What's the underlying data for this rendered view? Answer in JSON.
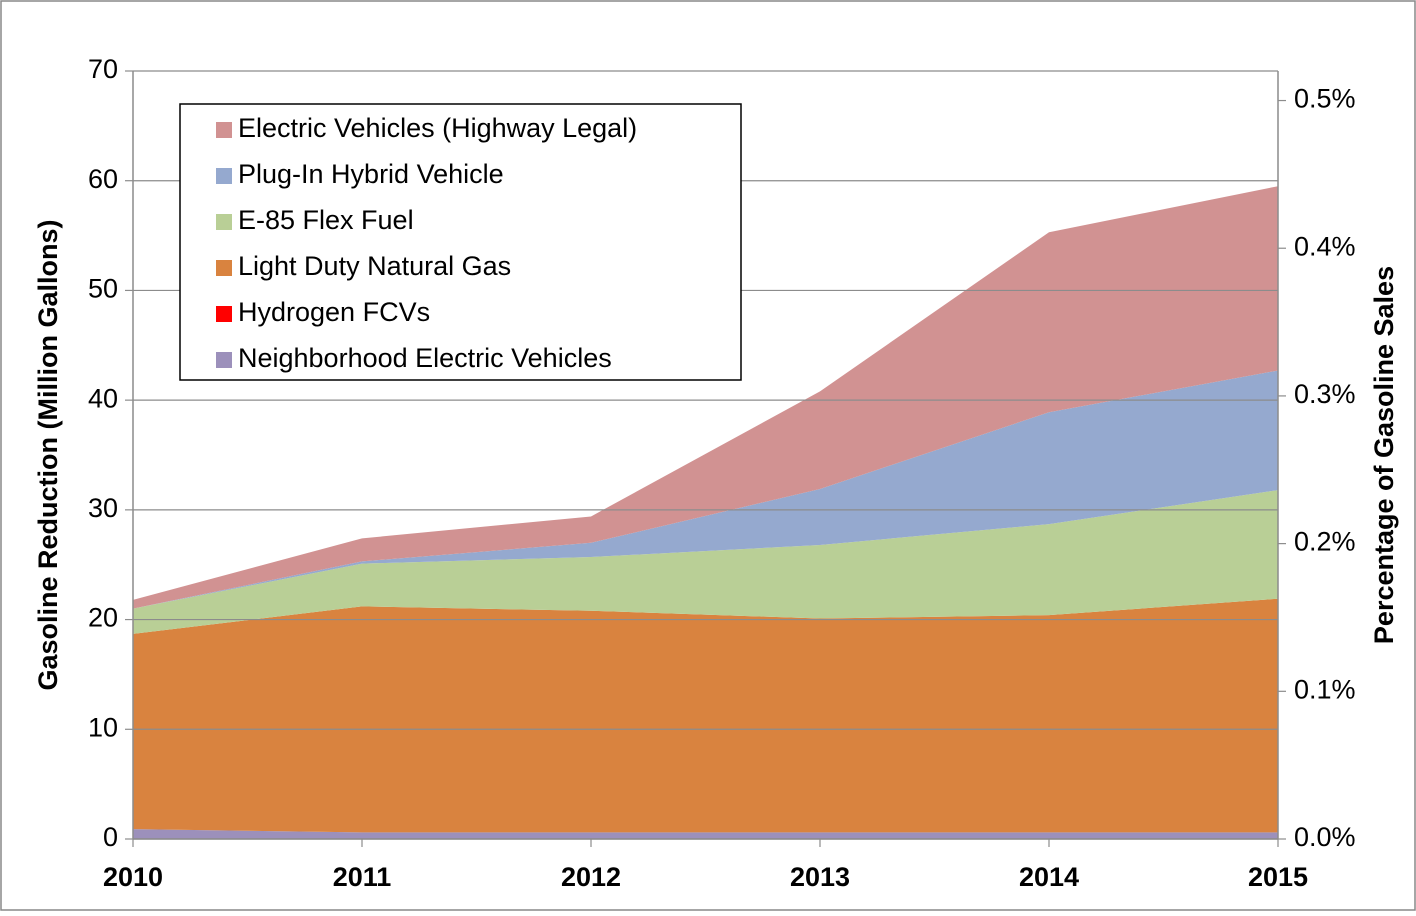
{
  "chart_data": {
    "type": "stacked_area",
    "y_label": "Gasoline Reduction (Million Gallons)",
    "y2_label": "Percentage of Gasoline Sales",
    "categories": [
      "2010",
      "2011",
      "2012",
      "2013",
      "2014",
      "2015"
    ],
    "series": [
      {
        "name": "Neighborhood Electric Vehicles",
        "color": "#9c90bb",
        "values": [
          0.9,
          0.6,
          0.6,
          0.6,
          0.6,
          0.6
        ]
      },
      {
        "name": "Hydrogen FCVs",
        "color": "#ff0000",
        "values": [
          0,
          0,
          0,
          0,
          0,
          0
        ]
      },
      {
        "name": "Light Duty Natural Gas",
        "color": "#d9833f",
        "values": [
          17.8,
          20.6,
          20.2,
          19.5,
          19.8,
          21.3
        ]
      },
      {
        "name": "E-85 Flex Fuel",
        "color": "#b9cf96",
        "values": [
          2.3,
          3.9,
          4.9,
          6.7,
          8.3,
          9.9
        ]
      },
      {
        "name": "Plug-In Hybrid Vehicle",
        "color": "#95a9cf",
        "values": [
          0,
          0.2,
          1.3,
          5.1,
          10.2,
          10.9
        ]
      },
      {
        "name": "Electric Vehicles (Highway Legal)",
        "color": "#d19292",
        "values": [
          0.8,
          2.1,
          2.4,
          8.9,
          16.4,
          16.8
        ]
      }
    ],
    "ylim": [
      0,
      70
    ],
    "yticks": [
      0,
      10,
      20,
      30,
      40,
      50,
      60,
      70
    ],
    "y2lim": [
      0,
      0.52
    ],
    "y2ticks": [
      {
        "value": 0,
        "label": "0.0%"
      },
      {
        "value": 0.1,
        "label": "0.1%"
      },
      {
        "value": 0.2,
        "label": "0.2%"
      },
      {
        "value": 0.3,
        "label": "0.3%"
      },
      {
        "value": 0.4,
        "label": "0.4%"
      },
      {
        "value": 0.5,
        "label": "0.5%"
      }
    ],
    "grid": true,
    "legend": "top-left"
  }
}
